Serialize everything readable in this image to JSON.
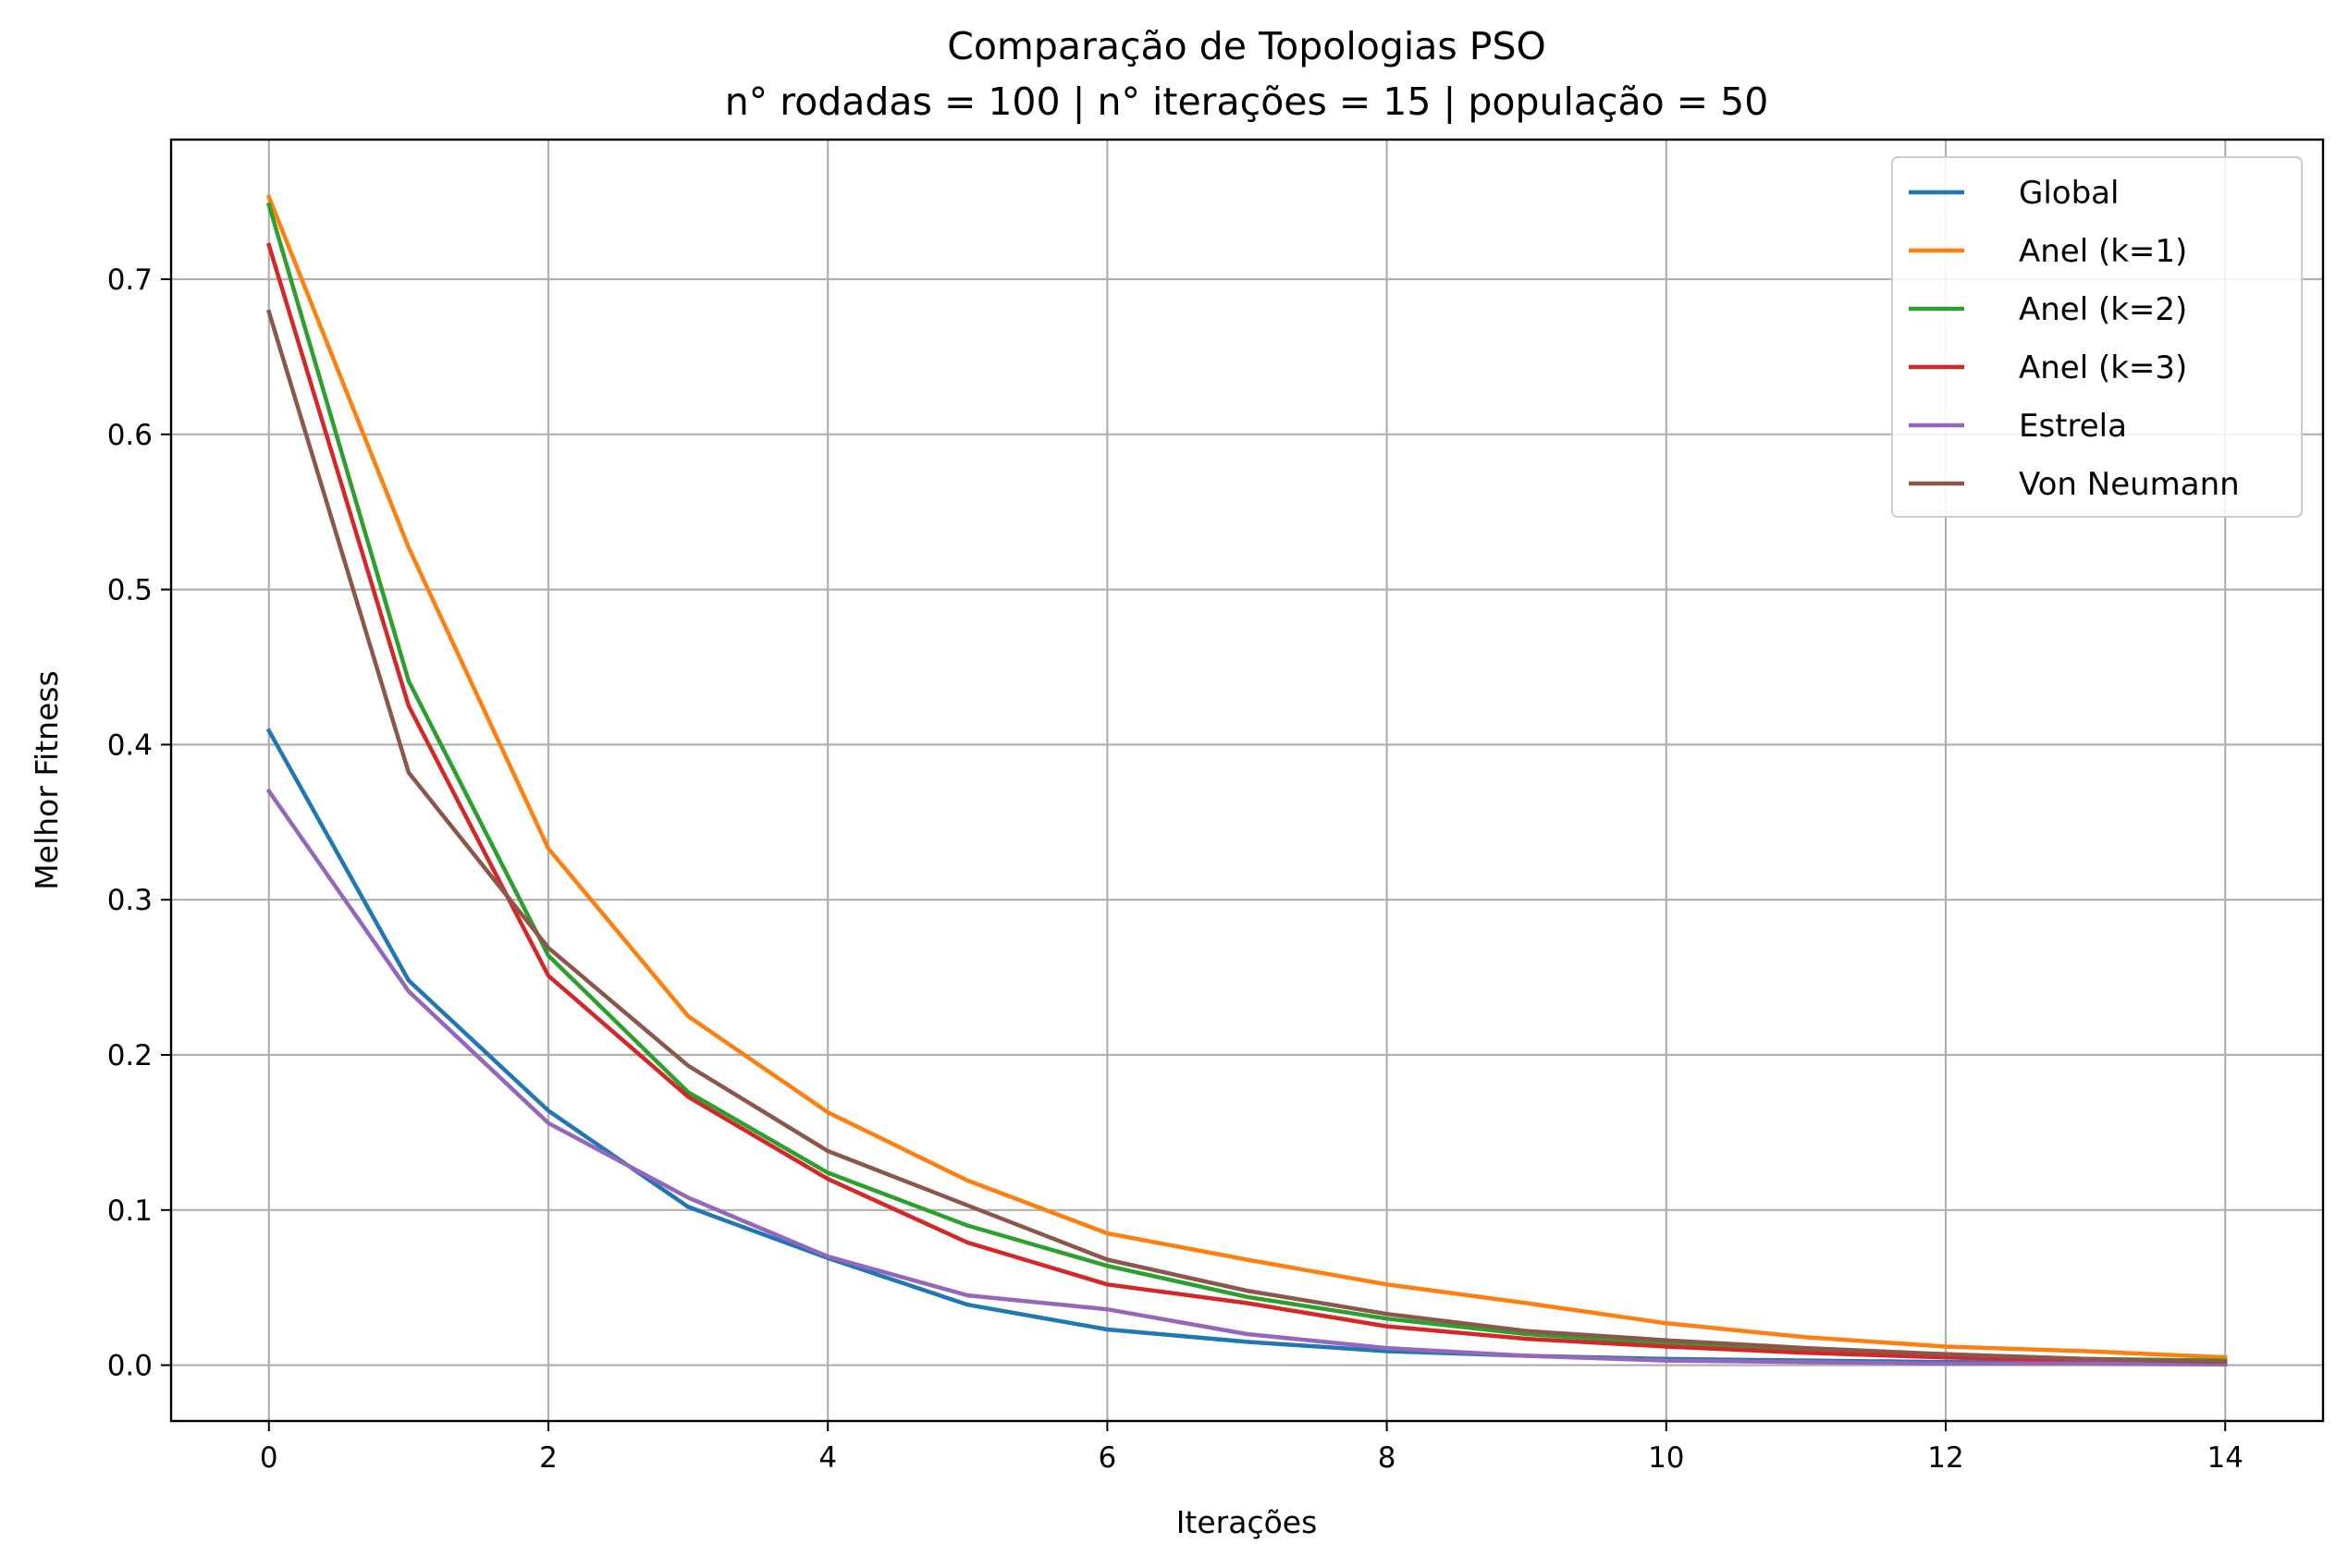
{
  "chart_data": {
    "type": "line",
    "title": "Comparação de Topologias PSO",
    "subtitle": "n° rodadas = 100 | n° iterações = 15 | população = 50",
    "xlabel": "Iterações",
    "ylabel": "Melhor Fitness",
    "xlim": [
      -0.7,
      14.7
    ],
    "ylim": [
      -0.036,
      0.79
    ],
    "x": [
      0,
      1,
      2,
      3,
      4,
      5,
      6,
      7,
      8,
      9,
      10,
      11,
      12,
      13,
      14
    ],
    "xticks": [
      0,
      2,
      4,
      6,
      8,
      10,
      12,
      14
    ],
    "yticks": [
      0.0,
      0.1,
      0.2,
      0.3,
      0.4,
      0.5,
      0.6,
      0.7
    ],
    "xtick_labels": [
      "0",
      "2",
      "4",
      "6",
      "8",
      "10",
      "12",
      "14"
    ],
    "ytick_labels": [
      "0.0",
      "0.1",
      "0.2",
      "0.3",
      "0.4",
      "0.5",
      "0.6",
      "0.7"
    ],
    "grid": true,
    "legend_position": "top-right",
    "series": [
      {
        "name": "Global",
        "color": "#1f77b4",
        "values": [
          0.409,
          0.248,
          0.164,
          0.102,
          0.069,
          0.039,
          0.023,
          0.015,
          0.009,
          0.006,
          0.004,
          0.003,
          0.002,
          0.0015,
          0.001
        ]
      },
      {
        "name": "Anel (k=1)",
        "color": "#ff7f0e",
        "values": [
          0.753,
          0.527,
          0.333,
          0.225,
          0.163,
          0.119,
          0.085,
          0.068,
          0.052,
          0.04,
          0.027,
          0.018,
          0.012,
          0.009,
          0.005
        ]
      },
      {
        "name": "Anel (k=2)",
        "color": "#2ca02c",
        "values": [
          0.748,
          0.441,
          0.264,
          0.176,
          0.124,
          0.09,
          0.064,
          0.044,
          0.03,
          0.02,
          0.014,
          0.01,
          0.007,
          0.004,
          0.003
        ]
      },
      {
        "name": "Anel (k=3)",
        "color": "#d62728",
        "values": [
          0.722,
          0.425,
          0.251,
          0.173,
          0.12,
          0.079,
          0.052,
          0.04,
          0.025,
          0.017,
          0.012,
          0.008,
          0.005,
          0.003,
          0.002
        ]
      },
      {
        "name": "Estrela",
        "color": "#9467bd",
        "values": [
          0.37,
          0.241,
          0.156,
          0.108,
          0.07,
          0.045,
          0.036,
          0.02,
          0.011,
          0.006,
          0.003,
          0.002,
          0.001,
          0.001,
          0.0005
        ]
      },
      {
        "name": "Von Neumann",
        "color": "#8c564b",
        "values": [
          0.679,
          0.382,
          0.269,
          0.193,
          0.138,
          0.103,
          0.068,
          0.048,
          0.033,
          0.022,
          0.016,
          0.011,
          0.007,
          0.004,
          0.002
        ]
      }
    ]
  }
}
